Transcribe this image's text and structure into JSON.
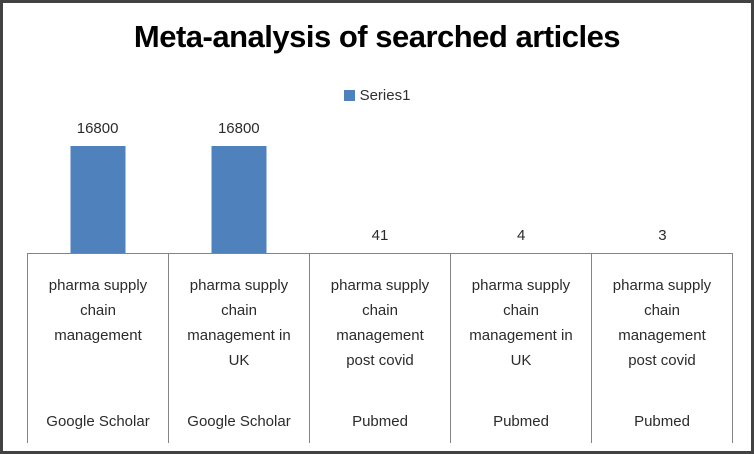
{
  "chart_data": {
    "type": "bar",
    "title": "Meta-analysis of searched articles",
    "legend": {
      "label": "Series1",
      "position": "top-center",
      "marker_color": "#4F81BD"
    },
    "bar_color": "#4F81BD",
    "axis_line_color": "#848484",
    "ylim": [
      0,
      16800
    ],
    "gridlines": false,
    "data_labels": true,
    "categories": [
      {
        "term": "pharma supply\nchain\nmanagement",
        "source": "Google Scholar"
      },
      {
        "term": "pharma supply\nchain\nmanagement in\nUK",
        "source": "Google Scholar"
      },
      {
        "term": "pharma supply\nchain\nmanagement\npost covid",
        "source": "Pubmed"
      },
      {
        "term": "pharma supply\nchain\nmanagement in\nUK",
        "source": "Pubmed"
      },
      {
        "term": "pharma supply\nchain\nmanagement\npost covid",
        "source": "Pubmed"
      }
    ],
    "series": [
      {
        "name": "Series1",
        "values": [
          16800,
          16800,
          41,
          4,
          3
        ]
      }
    ]
  }
}
